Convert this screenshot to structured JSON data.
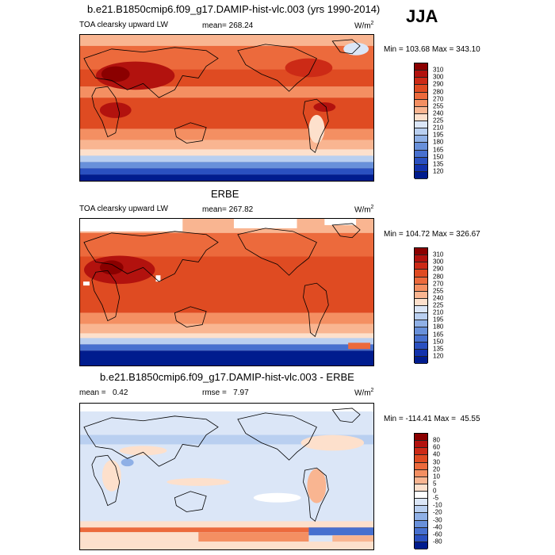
{
  "season": "JJA",
  "panels": [
    {
      "title": "b.e21.B1850cmip6.f09_g17.DAMIP-hist-vlc.003 (yrs 1990-2014)",
      "left_label": "TOA clearsky upward LW",
      "center_label": "mean= 268.24",
      "units": "W/m",
      "units_sup": "2",
      "minmax": "Min = 103.68 Max = 343.10",
      "levels": [
        "310",
        "300",
        "290",
        "280",
        "270",
        "255",
        "240",
        "225",
        "210",
        "195",
        "180",
        "165",
        "150",
        "135",
        "120"
      ],
      "colors": [
        "#8b0000",
        "#b2120e",
        "#cc2a16",
        "#df4b22",
        "#ec6a3c",
        "#f48f62",
        "#f9b591",
        "#fde0cc",
        "#dbe6f7",
        "#b9cff0",
        "#8fb0e6",
        "#6890da",
        "#4770cf",
        "#2a50c0",
        "#1232ac",
        "#001c8e"
      ]
    },
    {
      "title": "ERBE",
      "left_label": "TOA clearsky upward LW",
      "center_label": "mean= 267.82",
      "units": "W/m",
      "units_sup": "2",
      "minmax": "Min = 104.72 Max = 326.67",
      "levels": [
        "310",
        "300",
        "290",
        "280",
        "270",
        "255",
        "240",
        "225",
        "210",
        "195",
        "180",
        "165",
        "150",
        "135",
        "120"
      ],
      "colors": [
        "#8b0000",
        "#b2120e",
        "#cc2a16",
        "#df4b22",
        "#ec6a3c",
        "#f48f62",
        "#f9b591",
        "#fde0cc",
        "#dbe6f7",
        "#b9cff0",
        "#8fb0e6",
        "#6890da",
        "#4770cf",
        "#2a50c0",
        "#1232ac",
        "#001c8e"
      ]
    },
    {
      "title": "b.e21.B1850cmip6.f09_g17.DAMIP-hist-vlc.003 - ERBE",
      "left_label": "mean =   0.42",
      "center_label": "rmse =   7.97",
      "units": "W/m",
      "units_sup": "2",
      "minmax": "Min = -114.41 Max =  45.55",
      "levels": [
        "80",
        "60",
        "40",
        "30",
        "20",
        "10",
        "5",
        "0",
        "-5",
        "-10",
        "-20",
        "-30",
        "-40",
        "-60",
        "-80"
      ],
      "colors": [
        "#8b0000",
        "#b2120e",
        "#cc2a16",
        "#df4b22",
        "#ec6a3c",
        "#f48f62",
        "#f9b591",
        "#fde0cc",
        "#ffffff",
        "#dbe6f7",
        "#b9cff0",
        "#8fb0e6",
        "#6890da",
        "#4770cf",
        "#2a50c0",
        "#001c8e"
      ]
    }
  ]
}
